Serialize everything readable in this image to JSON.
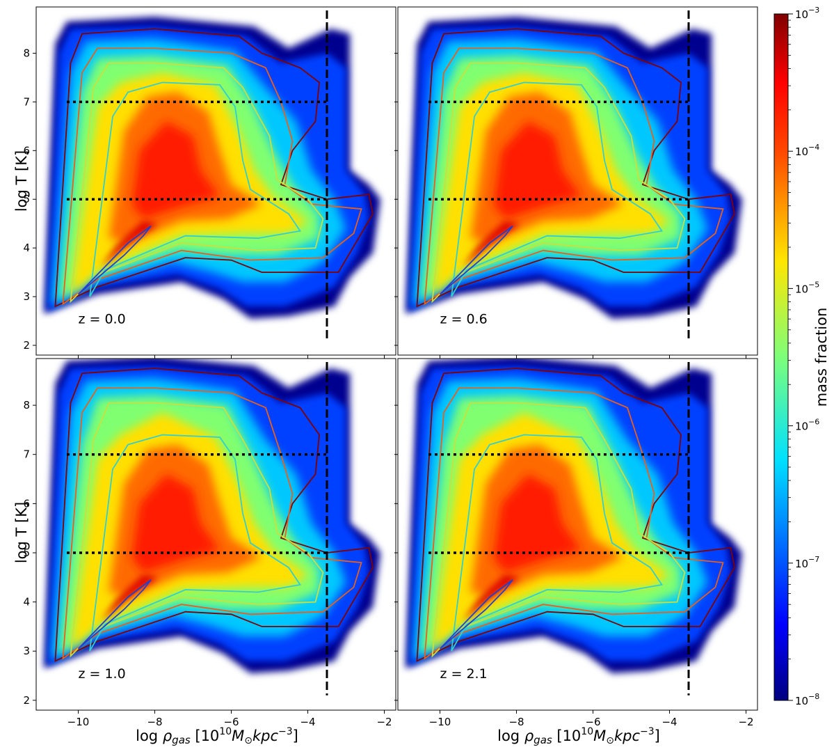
{
  "chart_data": {
    "type": "heatmap",
    "layout": "2x2 grid of phase diagrams, shared axes",
    "xlabel": "log ρgas [10¹⁰M☉kpc⁻³]",
    "xlabel_parts": {
      "base": "log ",
      "rho": "ρ",
      "sub": "gas",
      "bracket_open": " [10",
      "exp1": "10",
      "msun": "M",
      "sun_sub": "⊙",
      "kpc": "kpc",
      "exp2": "−3",
      "bracket_close": "]"
    },
    "ylabel": "log T [K]",
    "xlim": [
      -11.1,
      -1.7
    ],
    "ylim": [
      1.8,
      8.95
    ],
    "xticks": [
      -10,
      -8,
      -6,
      -4,
      -2
    ],
    "xtick_labels": [
      "−10",
      "−8",
      "−6",
      "−4",
      "−2"
    ],
    "yticks": [
      2,
      3,
      4,
      5,
      6,
      7,
      8
    ],
    "ytick_labels": [
      "2",
      "3",
      "4",
      "5",
      "6",
      "7",
      "8"
    ],
    "reference_lines": {
      "horizontal_dotted_logT": [
        5,
        7
      ],
      "vertical_dashed_log_rho": -3.5,
      "color": "#000000"
    },
    "panels": [
      {
        "label": "z = 0.0",
        "redshift": 0.0
      },
      {
        "label": "z = 0.6",
        "redshift": 0.6
      },
      {
        "label": "z = 1.0",
        "redshift": 1.0
      },
      {
        "label": "z = 2.1",
        "redshift": 2.1
      }
    ],
    "colorbar": {
      "label": "mass fraction",
      "scale": "log",
      "range": [
        1e-08,
        0.001
      ],
      "colormap": "jet",
      "major_ticks": [
        1e-08,
        1e-07,
        1e-06,
        1e-05,
        0.0001,
        0.001
      ],
      "tick_labels": [
        {
          "base": "10",
          "exp": "−8"
        },
        {
          "base": "10",
          "exp": "−7"
        },
        {
          "base": "10",
          "exp": "−6"
        },
        {
          "base": "10",
          "exp": "−5"
        },
        {
          "base": "10",
          "exp": "−4"
        },
        {
          "base": "10",
          "exp": "−3"
        }
      ]
    },
    "colors": {
      "contour_dark_red": "#800000",
      "contour_orange": "#e8601c",
      "contour_yellow": "#c8e040",
      "contour_cyan": "#30d0d0",
      "contour_blue": "#2040d0"
    }
  }
}
